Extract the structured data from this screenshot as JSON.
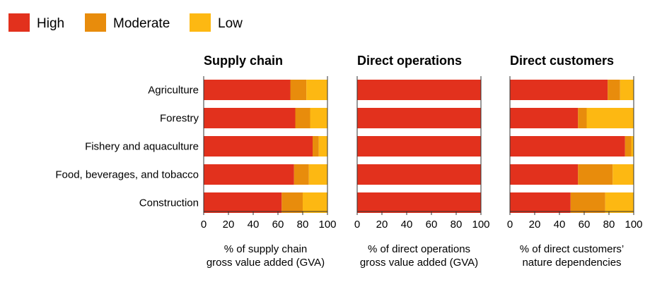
{
  "colors": {
    "High": "#e2311d",
    "Moderate": "#e88c0c",
    "Low": "#fdb812",
    "axis": "#555555",
    "grid": "#333333"
  },
  "chart_data": {
    "type": "bar",
    "orientation": "horizontal",
    "stacked": true,
    "legend": {
      "placement": "top-left",
      "entries": [
        "High",
        "Moderate",
        "Low"
      ]
    },
    "categories": [
      "Agriculture",
      "Forestry",
      "Fishery and aquaculture",
      "Food, beverages, and tobacco",
      "Construction"
    ],
    "xlim": [
      0,
      100
    ],
    "xticks": [
      0,
      20,
      40,
      60,
      80,
      100
    ],
    "panels": [
      {
        "title": "Supply chain",
        "xlabel": [
          "% of supply chain",
          "gross value added (GVA)"
        ],
        "series": [
          {
            "name": "High",
            "values": [
              70,
              74,
              88,
              73,
              63
            ]
          },
          {
            "name": "Moderate",
            "values": [
              13,
              12,
              5,
              12,
              17
            ]
          },
          {
            "name": "Low",
            "values": [
              17,
              14,
              7,
              15,
              20
            ]
          }
        ]
      },
      {
        "title": "Direct operations",
        "xlabel": [
          "% of direct operations",
          "gross value added (GVA)"
        ],
        "series": [
          {
            "name": "High",
            "values": [
              100,
              100,
              100,
              100,
              100
            ]
          },
          {
            "name": "Moderate",
            "values": [
              0,
              0,
              0,
              0,
              0
            ]
          },
          {
            "name": "Low",
            "values": [
              0,
              0,
              0,
              0,
              0
            ]
          }
        ]
      },
      {
        "title": "Direct customers",
        "xlabel": [
          "% of direct customers’",
          "nature dependencies"
        ],
        "series": [
          {
            "name": "High",
            "values": [
              79,
              55,
              93,
              55,
              49
            ]
          },
          {
            "name": "Moderate",
            "values": [
              10,
              7,
              5,
              28,
              28
            ]
          },
          {
            "name": "Low",
            "values": [
              11,
              38,
              2,
              17,
              23
            ]
          }
        ]
      }
    ]
  }
}
